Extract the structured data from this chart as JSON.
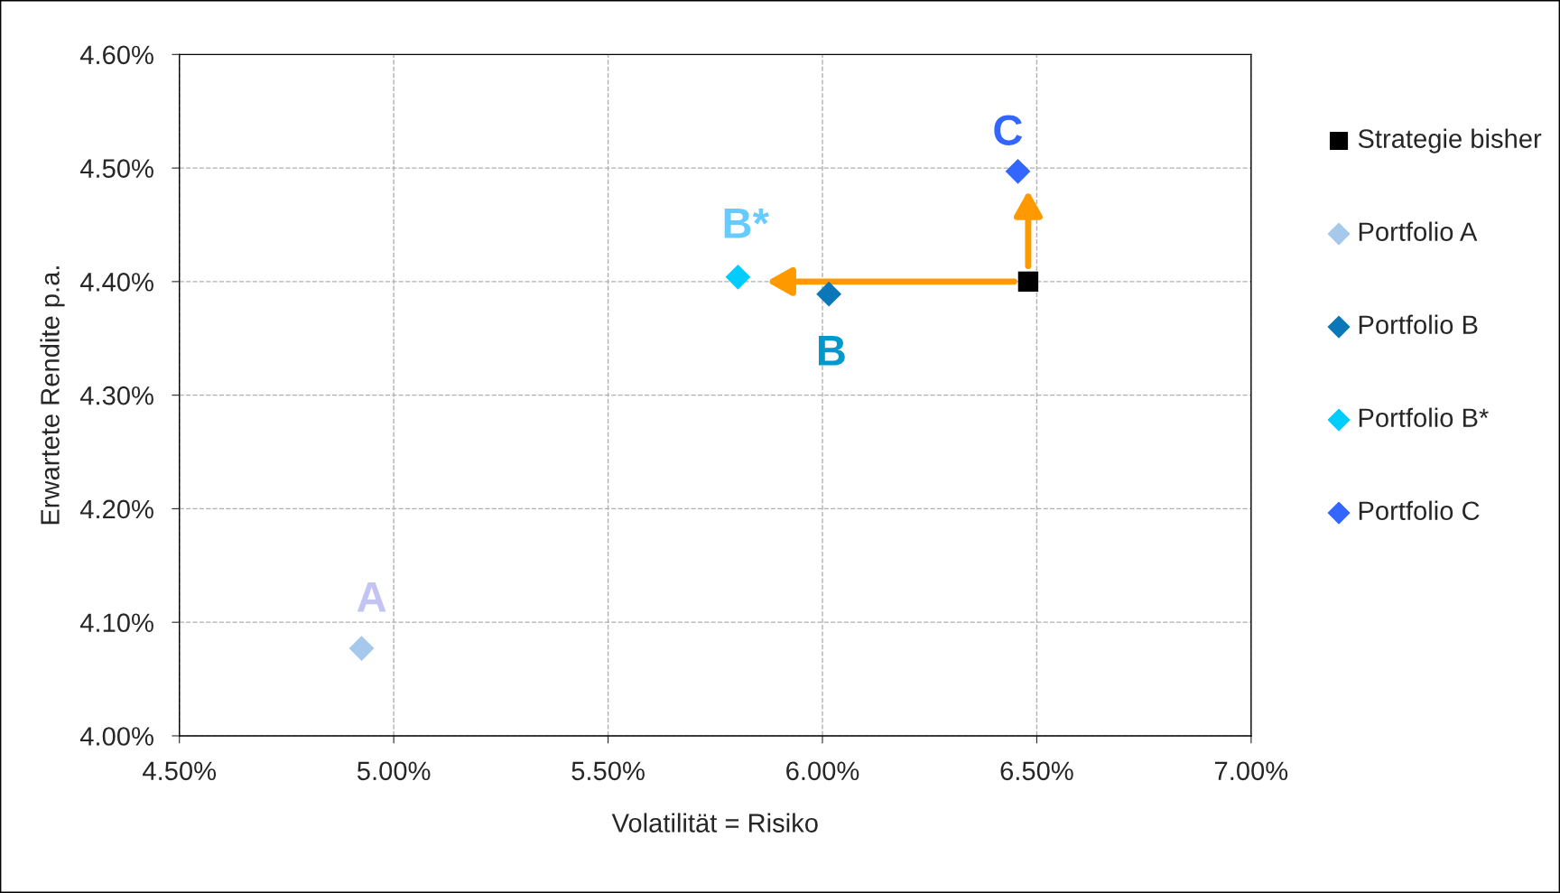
{
  "chart_data": {
    "type": "scatter",
    "xlabel": "Volatilität = Risiko",
    "ylabel": "Erwartete Rendite p.a.",
    "series": [
      {
        "name": "Strategie bisher",
        "color": "#000000",
        "marker": "square",
        "x": [
          6.48
        ],
        "values": [
          4.4
        ]
      },
      {
        "name": "Portfolio A",
        "color": "#a6c8ec",
        "marker": "diamond",
        "x": [
          4.925
        ],
        "values": [
          4.077
        ]
      },
      {
        "name": "Portfolio B",
        "color": "#0a78b8",
        "marker": "diamond",
        "x": [
          6.015
        ],
        "values": [
          4.389
        ]
      },
      {
        "name": "Portfolio B*",
        "color": "#00ccff",
        "marker": "diamond",
        "x": [
          5.803
        ],
        "values": [
          4.404
        ]
      },
      {
        "name": "Portfolio C",
        "color": "#3366ff",
        "marker": "diamond",
        "x": [
          6.456
        ],
        "values": [
          4.497
        ]
      }
    ],
    "annotations": [
      {
        "text": "A",
        "x": 4.925,
        "y": 4.077
      },
      {
        "text": "B",
        "x": 6.015,
        "y": 4.389
      },
      {
        "text": "B*",
        "x": 5.803,
        "y": 4.404
      },
      {
        "text": "C",
        "x": 6.456,
        "y": 4.497
      }
    ],
    "xlim": [
      4.5,
      7.0
    ],
    "xticks": [
      {
        "value": 4.5,
        "label": "4.50%"
      },
      {
        "value": 5.0,
        "label": "5.00%"
      },
      {
        "value": 5.5,
        "label": "5.50%"
      },
      {
        "value": 6.0,
        "label": "6.00%"
      },
      {
        "value": 6.5,
        "label": "6.50%"
      },
      {
        "value": 7.0,
        "label": "7.00%"
      }
    ],
    "ylim": [
      4.0,
      4.6
    ],
    "yticks": [
      {
        "value": 4.0,
        "label": "4.00%"
      },
      {
        "value": 4.1,
        "label": "4.10%"
      },
      {
        "value": 4.2,
        "label": "4.20%"
      },
      {
        "value": 4.3,
        "label": "4.30%"
      },
      {
        "value": 4.4,
        "label": "4.40%"
      },
      {
        "value": 4.5,
        "label": "4.50%"
      },
      {
        "value": 4.6,
        "label": "4.60%"
      }
    ],
    "grid": true,
    "legend": "right"
  }
}
